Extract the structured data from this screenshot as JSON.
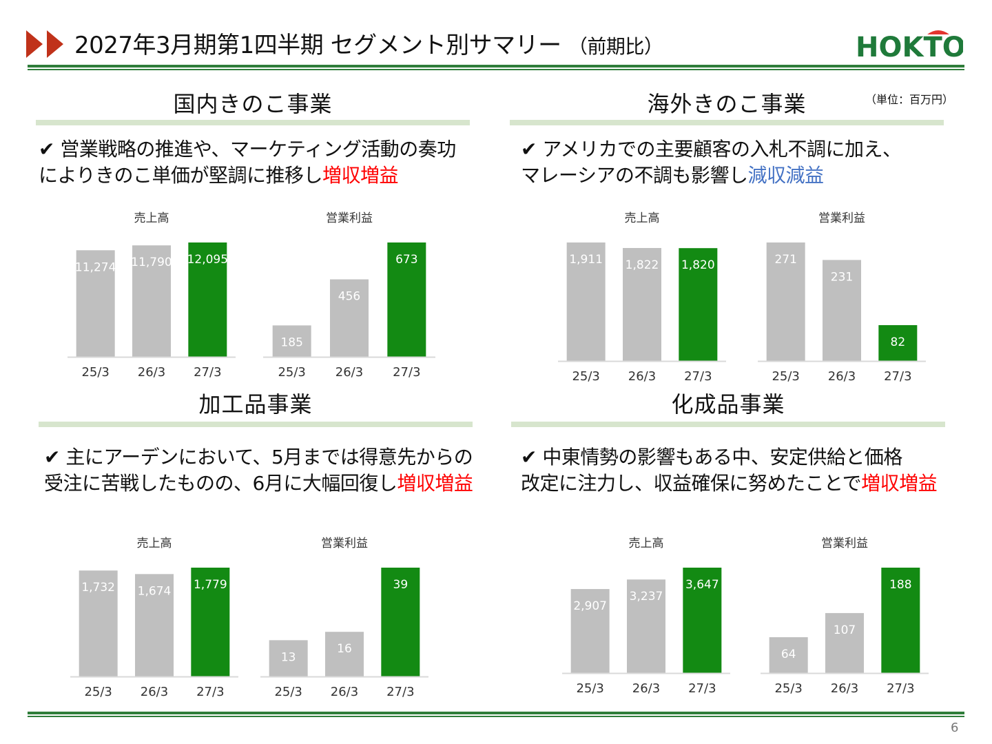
{
  "header": {
    "title": "2027年3月期第1四半期 セグメント別サマリー",
    "title_suffix": "（前期比）",
    "logo_text": "HOKTO",
    "unit": "（単位：百万円）"
  },
  "sections": [
    {
      "title": "国内きのこ事業",
      "bullet_line1": "✔ 営業戦略の推進や、マーケティング活動の奏功",
      "bullet_line2_prefix": "によりきのこ単価が堅調に推移し",
      "bullet_highlight": "増収増益"
    },
    {
      "title": "海外きのこ事業",
      "bullet_line1": "✔ アメリカでの主要顧客の入札不調に加え、",
      "bullet_line2_prefix": "マレーシアの不調も影響し",
      "bullet_highlight": "減収減益"
    },
    {
      "title": "加工品事業",
      "bullet_line1": "✔ 主にアーデンにおいて、5月までは得意先からの",
      "bullet_line2_prefix": "受注に苦戦したものの、6月に大幅回復し",
      "bullet_highlight": "増収増益"
    },
    {
      "title": "化成品事業",
      "bullet_line1": "✔ 中東情勢の影響もある中、安定供給と価格",
      "bullet_line2_prefix": "改定に注力し、収益確保に努めたことで",
      "bullet_highlight": "増収増益"
    }
  ],
  "colors": {
    "bar_gray": "#bfbfbf",
    "bar_green": "#138a13",
    "rule_green": "#2f7d3a",
    "section_bar": "#d7e5cd",
    "highlight_red": "#ff0000",
    "highlight_blue": "#4472c4"
  },
  "page_number": "6",
  "chart_data": [
    {
      "type": "bar",
      "segment": "国内きのこ事業",
      "title": "売上高",
      "categories": [
        "25/3",
        "26/3",
        "27/3"
      ],
      "values": [
        11274,
        11790,
        12095
      ],
      "labels": [
        "11,274",
        "11,790",
        "12,095"
      ]
    },
    {
      "type": "bar",
      "segment": "国内きのこ事業",
      "title": "営業利益",
      "categories": [
        "25/3",
        "26/3",
        "27/3"
      ],
      "values": [
        185,
        456,
        673
      ],
      "labels": [
        "185",
        "456",
        "673"
      ]
    },
    {
      "type": "bar",
      "segment": "海外きのこ事業",
      "title": "売上高",
      "categories": [
        "25/3",
        "26/3",
        "27/3"
      ],
      "values": [
        1911,
        1822,
        1820
      ],
      "labels": [
        "1,911",
        "1,822",
        "1,820"
      ]
    },
    {
      "type": "bar",
      "segment": "海外きのこ事業",
      "title": "営業利益",
      "categories": [
        "25/3",
        "26/3",
        "27/3"
      ],
      "values": [
        271,
        231,
        82
      ],
      "labels": [
        "271",
        "231",
        "82"
      ]
    },
    {
      "type": "bar",
      "segment": "加工品事業",
      "title": "売上高",
      "categories": [
        "25/3",
        "26/3",
        "27/3"
      ],
      "values": [
        1732,
        1674,
        1779
      ],
      "labels": [
        "1,732",
        "1,674",
        "1,779"
      ]
    },
    {
      "type": "bar",
      "segment": "加工品事業",
      "title": "営業利益",
      "categories": [
        "25/3",
        "26/3",
        "27/3"
      ],
      "values": [
        13,
        16,
        39
      ],
      "labels": [
        "13",
        "16",
        "39"
      ]
    },
    {
      "type": "bar",
      "segment": "化成品事業",
      "title": "売上高",
      "categories": [
        "25/3",
        "26/3",
        "27/3"
      ],
      "values": [
        2907,
        3237,
        3647
      ],
      "labels": [
        "2,907",
        "3,237",
        "3,647"
      ]
    },
    {
      "type": "bar",
      "segment": "化成品事業",
      "title": "営業利益",
      "categories": [
        "25/3",
        "26/3",
        "27/3"
      ],
      "values": [
        64,
        107,
        188
      ],
      "labels": [
        "64",
        "107",
        "188"
      ]
    }
  ]
}
